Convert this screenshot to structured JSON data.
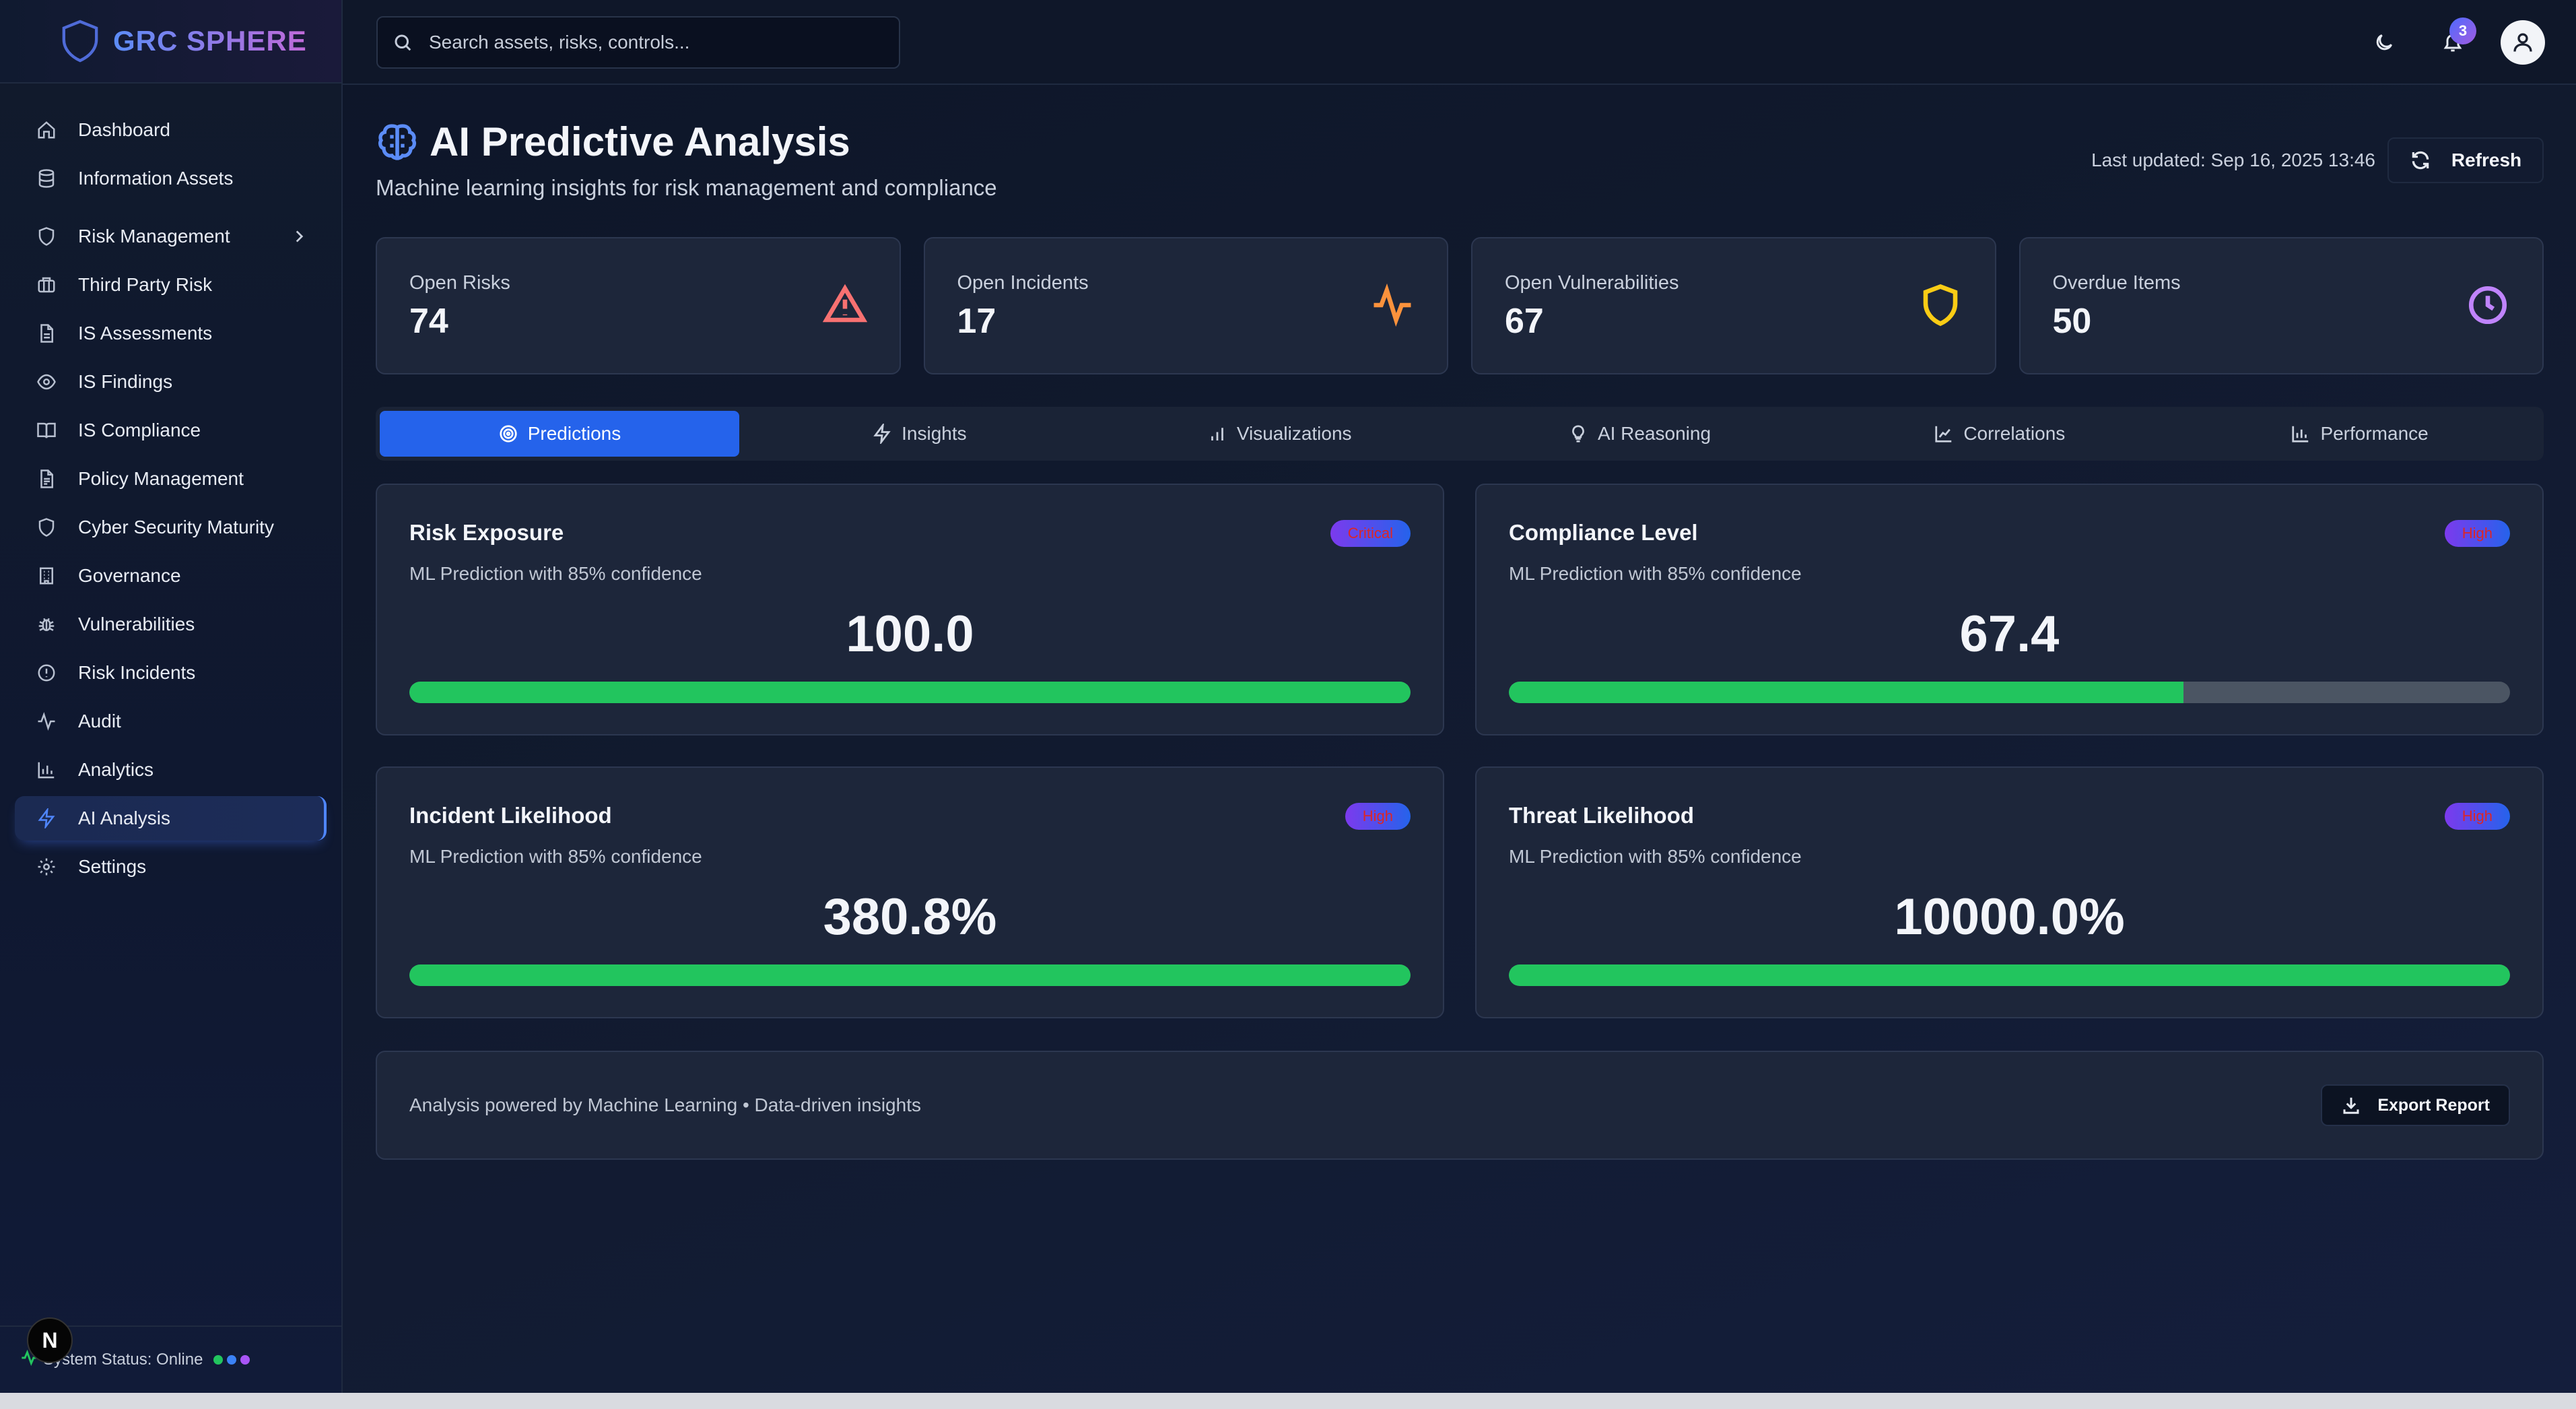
{
  "brand": {
    "name": "GRC SPHERE"
  },
  "sidebar": {
    "items": [
      {
        "label": "Dashboard",
        "icon": "home-icon"
      },
      {
        "label": "Information Assets",
        "icon": "database-icon"
      },
      {
        "label": "Risk Management",
        "icon": "shield-icon",
        "has_children": true
      },
      {
        "label": "Third Party Risk",
        "icon": "briefcase-icon"
      },
      {
        "label": "IS Assessments",
        "icon": "document-icon"
      },
      {
        "label": "IS Findings",
        "icon": "eye-icon"
      },
      {
        "label": "IS Compliance",
        "icon": "book-icon"
      },
      {
        "label": "Policy Management",
        "icon": "file-text-icon"
      },
      {
        "label": "Cyber Security Maturity",
        "icon": "shield-icon"
      },
      {
        "label": "Governance",
        "icon": "building-icon"
      },
      {
        "label": "Vulnerabilities",
        "icon": "bug-icon"
      },
      {
        "label": "Risk Incidents",
        "icon": "alert-circle-icon"
      },
      {
        "label": "Audit",
        "icon": "activity-icon"
      },
      {
        "label": "Analytics",
        "icon": "bar-chart-icon"
      },
      {
        "label": "AI Analysis",
        "icon": "zap-icon",
        "active": true
      },
      {
        "label": "Settings",
        "icon": "gear-icon"
      }
    ],
    "status_text": "System Status: Online",
    "status_dots": [
      "#22c55e",
      "#3b82f6",
      "#a855f7"
    ]
  },
  "topbar": {
    "search_placeholder": "Search assets, risks, controls...",
    "notifications_count": "3"
  },
  "page": {
    "title": "AI Predictive Analysis",
    "subtitle": "Machine learning insights for risk management and compliance",
    "last_updated": "Last updated: Sep 16, 2025 13:46",
    "refresh_label": "Refresh"
  },
  "stats": [
    {
      "label": "Open Risks",
      "value": "74",
      "icon": "warning-triangle-icon",
      "color": "#f87171"
    },
    {
      "label": "Open Incidents",
      "value": "17",
      "icon": "activity-icon",
      "color": "#fb923c"
    },
    {
      "label": "Open Vulnerabilities",
      "value": "67",
      "icon": "shield-icon",
      "color": "#facc15"
    },
    {
      "label": "Overdue Items",
      "value": "50",
      "icon": "clock-icon",
      "color": "#c084fc"
    }
  ],
  "tabs": [
    {
      "label": "Predictions",
      "icon": "target-icon",
      "active": true
    },
    {
      "label": "Insights",
      "icon": "zap-icon"
    },
    {
      "label": "Visualizations",
      "icon": "bar-chart-icon"
    },
    {
      "label": "AI Reasoning",
      "icon": "lightbulb-icon"
    },
    {
      "label": "Correlations",
      "icon": "scatter-chart-icon"
    },
    {
      "label": "Performance",
      "icon": "bar-chart-icon"
    }
  ],
  "predictions": [
    {
      "title": "Risk Exposure",
      "subtitle": "ML Prediction with 85% confidence",
      "badge": "Critical",
      "value": "100.0",
      "progress": 100
    },
    {
      "title": "Compliance Level",
      "subtitle": "ML Prediction with 85% confidence",
      "badge": "High",
      "value": "67.4",
      "progress": 67.4
    },
    {
      "title": "Incident Likelihood",
      "subtitle": "ML Prediction with 85% confidence",
      "badge": "High",
      "value": "380.8%",
      "progress": 100
    },
    {
      "title": "Threat Likelihood",
      "subtitle": "ML Prediction with 85% confidence",
      "badge": "High",
      "value": "10000.0%",
      "progress": 100
    }
  ],
  "footer": {
    "text": "Analysis powered by Machine Learning • Data-driven insights",
    "export_label": "Export Report"
  },
  "overlay_badge": "N"
}
